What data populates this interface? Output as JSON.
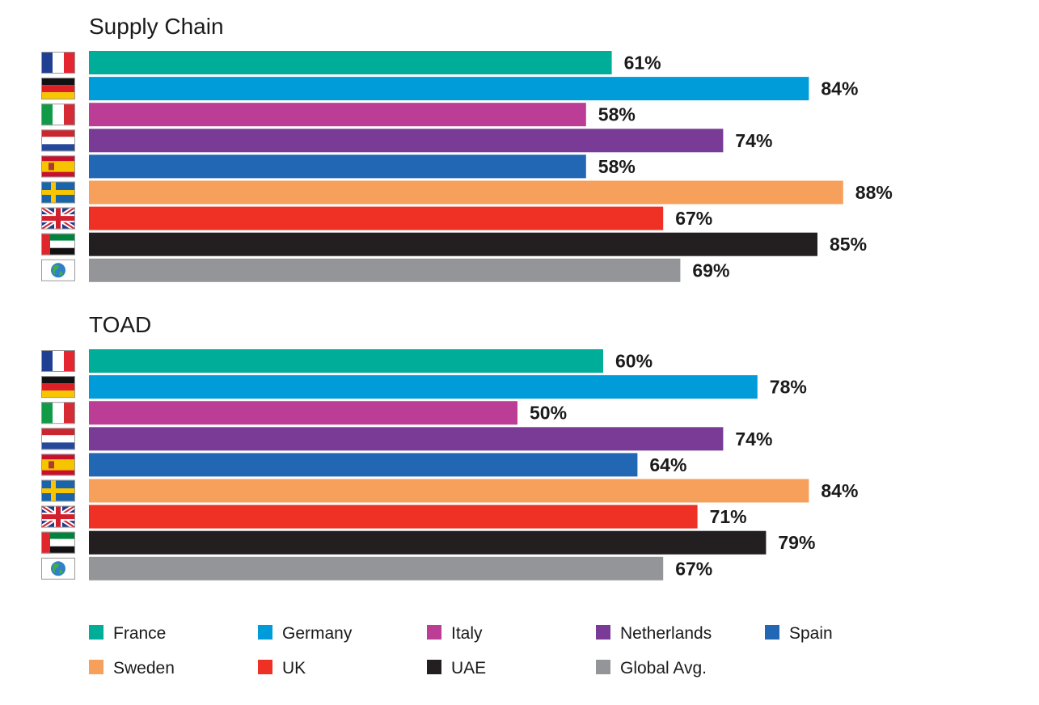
{
  "chart_data": [
    {
      "type": "bar",
      "orientation": "horizontal",
      "title": "Supply Chain",
      "categories": [
        "France",
        "Germany",
        "Italy",
        "Netherlands",
        "Spain",
        "Sweden",
        "UK",
        "UAE",
        "Global Avg."
      ],
      "values": [
        61,
        84,
        58,
        74,
        58,
        88,
        67,
        85,
        69
      ],
      "labels": [
        "61%",
        "84%",
        "58%",
        "74%",
        "58%",
        "88%",
        "67%",
        "85%",
        "69%"
      ],
      "xlim": [
        0,
        100
      ]
    },
    {
      "type": "bar",
      "orientation": "horizontal",
      "title": "TOAD",
      "categories": [
        "France",
        "Germany",
        "Italy",
        "Netherlands",
        "Spain",
        "Sweden",
        "UK",
        "UAE",
        "Global Avg."
      ],
      "values": [
        60,
        78,
        50,
        74,
        64,
        84,
        71,
        79,
        67
      ],
      "labels": [
        "60%",
        "78%",
        "50%",
        "74%",
        "64%",
        "84%",
        "71%",
        "79%",
        "67%"
      ],
      "xlim": [
        0,
        100
      ]
    }
  ],
  "legend": {
    "placement": "bottom",
    "items": [
      "France",
      "Germany",
      "Italy",
      "Netherlands",
      "Spain",
      "Sweden",
      "UK",
      "UAE",
      "Global Avg."
    ]
  },
  "colors": {
    "France": "#00ad98",
    "Germany": "#009cda",
    "Italy": "#bb3d95",
    "Netherlands": "#7a3b96",
    "Spain": "#2267b3",
    "Sweden": "#f6a05b",
    "UK": "#ee3124",
    "UAE": "#231f20",
    "Global Avg.": "#939598"
  },
  "flag_icons": [
    "france-flag-icon",
    "germany-flag-icon",
    "italy-flag-icon",
    "netherlands-flag-icon",
    "spain-flag-icon",
    "sweden-flag-icon",
    "uk-flag-icon",
    "uae-flag-icon",
    "globe-icon"
  ]
}
